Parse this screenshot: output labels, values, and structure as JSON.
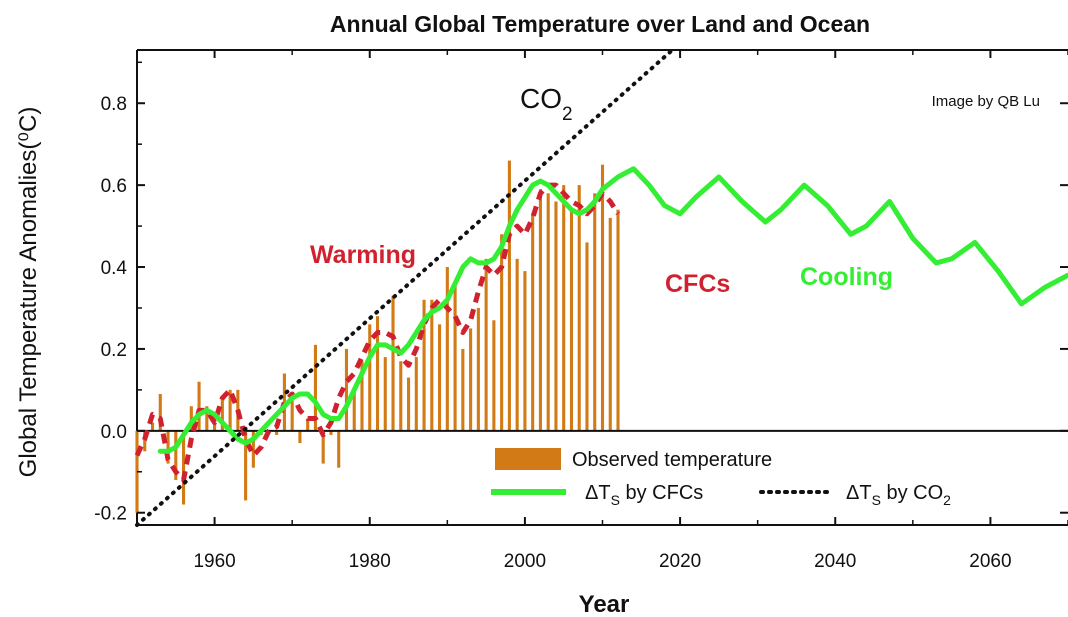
{
  "chart_data": {
    "type": "bar",
    "title": "Annual Global Temperature over Land and Ocean",
    "xlabel": "Year",
    "ylabel": "Global Temperature Anomalies(⁰C)",
    "xlim": [
      1950,
      2070
    ],
    "ylim": [
      -0.23,
      0.93
    ],
    "xticks": [
      1960,
      1980,
      2000,
      2020,
      2040,
      2060
    ],
    "yticks": [
      -0.2,
      0.0,
      0.2,
      0.4,
      0.6,
      0.8
    ],
    "grid": false,
    "legend_placement": "bottom-right",
    "credit": "Image by QB Lu",
    "annotations": {
      "co2_main": "CO",
      "co2_sub": "2",
      "warming": "Warming",
      "cfcs": "CFCs",
      "cooling": "Cooling"
    },
    "series": [
      {
        "name": "Observed temperature",
        "type": "bar",
        "color": "#d17a16",
        "x": [
          1950,
          1951,
          1952,
          1953,
          1954,
          1955,
          1956,
          1957,
          1958,
          1959,
          1960,
          1961,
          1962,
          1963,
          1964,
          1965,
          1966,
          1967,
          1968,
          1969,
          1970,
          1971,
          1972,
          1973,
          1974,
          1975,
          1976,
          1977,
          1978,
          1979,
          1980,
          1981,
          1982,
          1983,
          1984,
          1985,
          1986,
          1987,
          1988,
          1989,
          1990,
          1991,
          1992,
          1993,
          1994,
          1995,
          1996,
          1997,
          1998,
          1999,
          2000,
          2001,
          2002,
          2003,
          2004,
          2005,
          2006,
          2007,
          2008,
          2009,
          2010,
          2011,
          2012
        ],
        "values": [
          -0.2,
          -0.05,
          0.02,
          0.09,
          -0.08,
          -0.12,
          -0.18,
          0.06,
          0.12,
          0.06,
          0.03,
          0.08,
          0.1,
          0.1,
          -0.17,
          -0.09,
          -0.01,
          0.0,
          -0.01,
          0.14,
          0.08,
          -0.03,
          0.03,
          0.21,
          -0.08,
          -0.01,
          -0.09,
          0.2,
          0.1,
          0.17,
          0.26,
          0.28,
          0.18,
          0.33,
          0.17,
          0.13,
          0.18,
          0.32,
          0.32,
          0.26,
          0.4,
          0.36,
          0.2,
          0.25,
          0.3,
          0.42,
          0.27,
          0.48,
          0.66,
          0.42,
          0.39,
          0.53,
          0.59,
          0.58,
          0.56,
          0.6,
          0.54,
          0.6,
          0.46,
          0.58,
          0.65,
          0.52,
          0.54
        ]
      },
      {
        "name": "ΔT",
        "name_sub": "S",
        "name_rest": " by CFCs",
        "type": "line",
        "color": "#33ee33",
        "x": [
          1953,
          1954,
          1955,
          1956,
          1957,
          1958,
          1959,
          1960,
          1961,
          1962,
          1963,
          1964,
          1965,
          1966,
          1967,
          1968,
          1969,
          1970,
          1971,
          1972,
          1973,
          1974,
          1975,
          1976,
          1977,
          1978,
          1979,
          1980,
          1981,
          1982,
          1983,
          1984,
          1985,
          1986,
          1987,
          1988,
          1989,
          1990,
          1991,
          1992,
          1993,
          1994,
          1995,
          1996,
          1997,
          1998,
          1999,
          2000,
          2001,
          2002,
          2003,
          2004,
          2005,
          2006,
          2007,
          2008,
          2009,
          2010,
          2012,
          2014,
          2016,
          2018,
          2020,
          2022,
          2025,
          2028,
          2031,
          2033,
          2036,
          2039,
          2042,
          2044,
          2047,
          2050,
          2053,
          2055,
          2058,
          2061,
          2064,
          2067,
          2070
        ],
        "values": [
          -0.05,
          -0.05,
          -0.04,
          -0.01,
          0.02,
          0.04,
          0.05,
          0.04,
          0.02,
          0.0,
          -0.02,
          -0.03,
          -0.02,
          0.0,
          0.02,
          0.04,
          0.06,
          0.08,
          0.09,
          0.09,
          0.07,
          0.04,
          0.03,
          0.03,
          0.06,
          0.1,
          0.14,
          0.18,
          0.21,
          0.21,
          0.2,
          0.19,
          0.21,
          0.24,
          0.27,
          0.29,
          0.3,
          0.32,
          0.36,
          0.4,
          0.42,
          0.41,
          0.41,
          0.42,
          0.45,
          0.5,
          0.54,
          0.57,
          0.6,
          0.61,
          0.6,
          0.58,
          0.56,
          0.54,
          0.53,
          0.54,
          0.56,
          0.59,
          0.62,
          0.64,
          0.6,
          0.55,
          0.53,
          0.57,
          0.62,
          0.56,
          0.51,
          0.54,
          0.6,
          0.55,
          0.48,
          0.5,
          0.56,
          0.47,
          0.41,
          0.42,
          0.46,
          0.39,
          0.31,
          0.35,
          0.38
        ]
      },
      {
        "name": "ΔT",
        "name_sub": "S",
        "name_rest": " by CO",
        "name_sub2": "2",
        "type": "line",
        "style": "dotted",
        "color": "#111111",
        "x": [
          1950,
          2019
        ],
        "values": [
          -0.23,
          0.93
        ]
      },
      {
        "name": "",
        "type": "line",
        "style": "dashed",
        "color": "#d0212f",
        "x": [
          1950,
          1951,
          1952,
          1953,
          1954,
          1955,
          1956,
          1957,
          1958,
          1959,
          1960,
          1961,
          1962,
          1963,
          1964,
          1965,
          1966,
          1967,
          1968,
          1969,
          1970,
          1971,
          1972,
          1973,
          1974,
          1975,
          1976,
          1977,
          1978,
          1979,
          1980,
          1981,
          1982,
          1983,
          1984,
          1985,
          1986,
          1987,
          1988,
          1989,
          1990,
          1991,
          1992,
          1993,
          1994,
          1995,
          1996,
          1997,
          1998,
          1999,
          2000,
          2001,
          2002,
          2003,
          2004,
          2005,
          2006,
          2007,
          2008,
          2009,
          2010,
          2011,
          2012
        ],
        "values": [
          -0.06,
          -0.02,
          0.04,
          0.03,
          -0.07,
          -0.1,
          -0.12,
          -0.02,
          0.05,
          0.05,
          0.02,
          0.08,
          0.1,
          0.05,
          -0.02,
          -0.06,
          -0.04,
          0.0,
          0.01,
          0.07,
          0.09,
          0.05,
          0.03,
          0.03,
          -0.01,
          0.02,
          0.08,
          0.12,
          0.14,
          0.18,
          0.22,
          0.24,
          0.24,
          0.23,
          0.18,
          0.16,
          0.2,
          0.26,
          0.3,
          0.32,
          0.3,
          0.28,
          0.24,
          0.27,
          0.34,
          0.4,
          0.38,
          0.4,
          0.48,
          0.5,
          0.48,
          0.52,
          0.58,
          0.6,
          0.6,
          0.58,
          0.56,
          0.55,
          0.53,
          0.55,
          0.58,
          0.56,
          0.53
        ]
      }
    ]
  }
}
